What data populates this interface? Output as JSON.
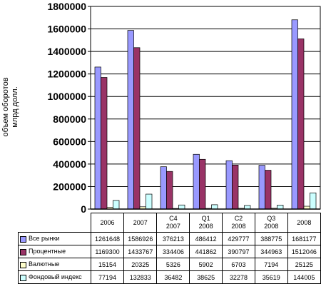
{
  "chart_data": {
    "type": "bar",
    "ylabel": [
      "объем оборотов",
      "млрд долл."
    ],
    "categories": [
      "2006",
      "2007",
      "C4 2007",
      "Q1 2008",
      "C2 2008",
      "Q3 2008",
      "2008"
    ],
    "series": [
      {
        "name": "Все рынки",
        "color": "#9999ff",
        "values": [
          1261648,
          1586926,
          376213,
          486412,
          429777,
          388775,
          1681177
        ]
      },
      {
        "name": "Процентные",
        "color": "#993366",
        "values": [
          1169300,
          1433767,
          334406,
          441862,
          390797,
          344963,
          1512046
        ]
      },
      {
        "name": "Валютные",
        "color": "#ffffcc",
        "values": [
          15154,
          20325,
          5326,
          5902,
          6703,
          7194,
          25125
        ]
      },
      {
        "name": "Фондовый индекс",
        "color": "#ccffff",
        "values": [
          77194,
          132833,
          36482,
          38625,
          32278,
          35619,
          144005
        ]
      }
    ],
    "ylim": [
      0,
      1800000
    ],
    "yticks": [
      0,
      200000,
      400000,
      600000,
      800000,
      1000000,
      1200000,
      1400000,
      1600000,
      1800000
    ],
    "grid": true
  }
}
